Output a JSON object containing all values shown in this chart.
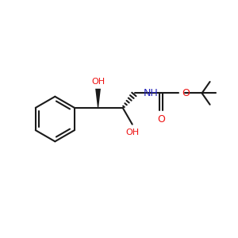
{
  "bg": "#ffffff",
  "bond_color": "#1a1a1a",
  "O_color": "#ee1111",
  "N_color": "#2222bb",
  "lw": 1.5,
  "figsize": [
    3.0,
    3.0
  ],
  "dpi": 100,
  "xlim": [
    -1.0,
    9.5
  ],
  "ylim": [
    1.5,
    8.5
  ]
}
